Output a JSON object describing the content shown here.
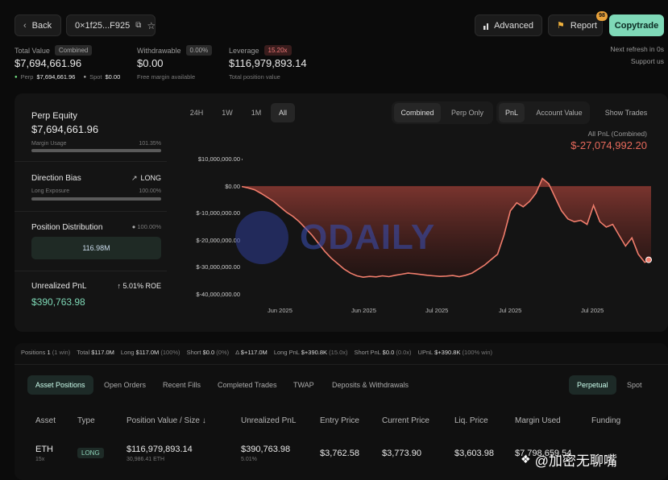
{
  "topbar": {
    "back_label": "Back",
    "address": "0×1f25...F925",
    "advanced_label": "Advanced",
    "report_label": "Report",
    "report_badge": "98",
    "copytrade_label": "Copytrade",
    "next_refresh": "Next refresh in 0s",
    "support": "Support us"
  },
  "summary": {
    "total_value_label": "Total Value",
    "total_value_tag": "Combined",
    "total_value": "$7,694,661.96",
    "perp_label": "Perp",
    "perp_value": "$7,694,661.96",
    "spot_label": "Spot",
    "spot_value": "$0.00",
    "withdrawable_label": "Withdrawable",
    "withdrawable_pct": "0.00%",
    "withdrawable_value": "$0.00",
    "withdrawable_sub": "Free margin available",
    "leverage_label": "Leverage",
    "leverage_tag": "15.20x",
    "leverage_value": "$116,979,893.14",
    "leverage_sub": "Total position value"
  },
  "left_panel": {
    "perp_equity_label": "Perp Equity",
    "perp_equity_value": "$7,694,661.96",
    "margin_usage_label": "Margin Usage",
    "margin_usage_value": "101.35%",
    "margin_usage_fraction": 1.0,
    "direction_bias_label": "Direction Bias",
    "direction_bias_value": "LONG",
    "long_exposure_label": "Long Exposure",
    "long_exposure_value": "100.00%",
    "long_exposure_fraction": 1.0,
    "position_distribution_label": "Position Distribution",
    "position_distribution_pct": "100.00%",
    "position_distribution_bar": "116.98M",
    "unrealized_pnl_label": "Unrealized PnL",
    "unrealized_pnl_roe": "5.01% ROE",
    "unrealized_pnl_value": "$390,763.98"
  },
  "chart_controls": {
    "ranges": [
      "24H",
      "1W",
      "1M",
      "All"
    ],
    "active_range": "All",
    "views": [
      "Combined",
      "Perp Only"
    ],
    "active_view": "Combined",
    "metrics": [
      "PnL",
      "Account Value"
    ],
    "active_metric": "PnL",
    "show_trades": "Show Trades"
  },
  "chart_header": {
    "label": "All PnL (Combined)",
    "value": "$-27,074,992.20"
  },
  "chart_data": {
    "type": "area",
    "title": "All PnL (Combined)",
    "y_ticks": [
      "$10,000,000.00",
      "$0.00",
      "$-10,000,000.00",
      "$-20,000,000.00",
      "$-30,000,000.00",
      "$-40,000,000.00"
    ],
    "ylim": [
      -40000000,
      10000000
    ],
    "x_ticks": [
      "Jun 2025",
      "Jun 2025",
      "Jul 2025",
      "Jul 2025",
      "Jul 2025"
    ],
    "series": [
      {
        "values": [
          0,
          -500000,
          -1200000,
          -2500000,
          -4000000,
          -5500000,
          -7500000,
          -9500000,
          -11000000,
          -13000000,
          -15500000,
          -18000000,
          -21000000,
          -24000000,
          -26500000,
          -28500000,
          -30500000,
          -32000000,
          -33000000,
          -33500000,
          -33200000,
          -33400000,
          -33000000,
          -33300000,
          -32800000,
          -32400000,
          -32000000,
          -32200000,
          -32500000,
          -32800000,
          -33000000,
          -33200000,
          -33100000,
          -32900000,
          -33300000,
          -32800000,
          -32000000,
          -30500000,
          -29000000,
          -27000000,
          -25000000,
          -18000000,
          -9000000,
          -6000000,
          -7500000,
          -5500000,
          -2500000,
          3000000,
          1000000,
          -4000000,
          -9000000,
          -12000000,
          -13000000,
          -12500000,
          -14000000,
          -7000000,
          -13000000,
          -15000000,
          -14000000,
          -18000000,
          -22000000,
          -19000000,
          -25000000,
          -28000000,
          -27074992
        ]
      }
    ],
    "grid": false
  },
  "stats_bar": [
    {
      "label": "Positions",
      "value": "1",
      "extra": "(1 win)"
    },
    {
      "label": "Total",
      "value": "$117.0M",
      "extra": ""
    },
    {
      "label": "Long",
      "value": "$117.0M",
      "extra": "(100%)"
    },
    {
      "label": "Short",
      "value": "$0.0",
      "extra": "(0%)"
    },
    {
      "label": "Δ",
      "value": "$+117.0M",
      "extra": ""
    },
    {
      "label": "Long PnL",
      "value": "$+390.8K",
      "extra": "(15.0x)"
    },
    {
      "label": "Short PnL",
      "value": "$0.0",
      "extra": "(0.0x)"
    },
    {
      "label": "UPnL",
      "value": "$+390.8K",
      "extra": "(100% win)"
    }
  ],
  "tabs": [
    "Asset Positions",
    "Open Orders",
    "Recent Fills",
    "Completed Trades",
    "TWAP",
    "Deposits & Withdrawals"
  ],
  "market_tabs": [
    "Perpetual",
    "Spot"
  ],
  "table": {
    "headers": [
      "Asset",
      "Type",
      "Position Value / Size",
      "Unrealized PnL",
      "Entry Price",
      "Current Price",
      "Liq. Price",
      "Margin Used",
      "Funding"
    ],
    "row": {
      "asset": "ETH",
      "leverage": "15x",
      "type": "LONG",
      "position_value": "$116,979,893.14",
      "position_size": "30,986.41 ETH",
      "unrealized_pnl": "$390,763.98",
      "pnl_pct": "5.01%",
      "entry_price": "$3,762.58",
      "current_price": "$3,773.90",
      "liq_price": "$3,603.98",
      "margin_used": "$7,798,659.54"
    }
  },
  "watermark": {
    "brand": "ODAILY",
    "badge": "@加密无聊嘴"
  }
}
